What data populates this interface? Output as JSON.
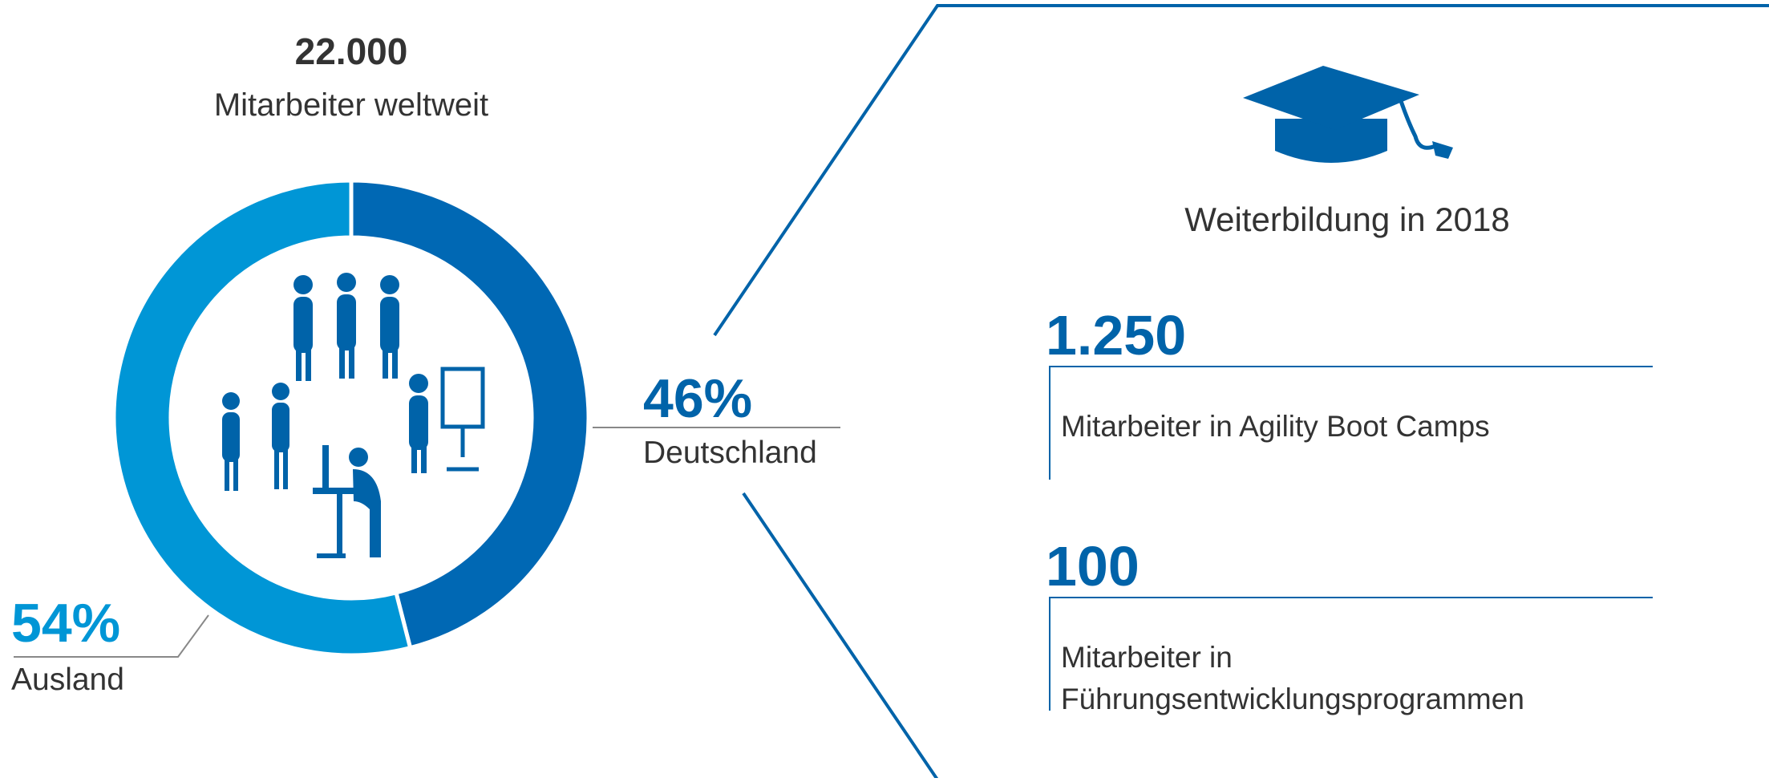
{
  "chart_data": {
    "type": "donut",
    "title": "22.000",
    "subtitle": "Mitarbeiter weltweit",
    "categories": [
      "Deutschland",
      "Ausland"
    ],
    "values": [
      46,
      54
    ],
    "value_labels": [
      "46%",
      "54%"
    ],
    "colors": [
      "#0068b4",
      "#0096d6"
    ]
  },
  "panel": {
    "heading": "Weiterbildung in 2018",
    "items": [
      {
        "number": "1.250",
        "lines": [
          "Mitarbeiter in Agility Boot Camps"
        ]
      },
      {
        "number": "100",
        "lines": [
          "Mitarbeiter in",
          "Führungsentwicklungsprogrammen"
        ]
      }
    ]
  }
}
